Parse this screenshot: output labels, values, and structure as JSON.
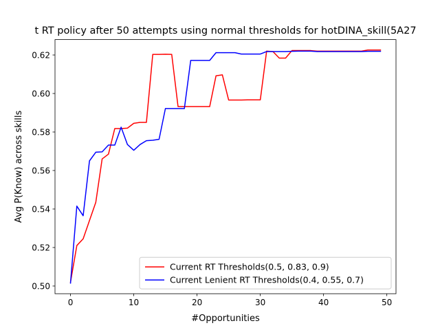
{
  "chart_data": {
    "type": "line",
    "title": "t RT policy after 50 attempts using normal thresholds for hotDINA_skill(5A27",
    "xlabel": "#Opportunities",
    "ylabel": "Avg P(Know) across skills",
    "xlim": [
      -2.45,
      51.45
    ],
    "ylim": [
      0.496,
      0.628
    ],
    "xticks": [
      0,
      10,
      20,
      30,
      40,
      50
    ],
    "yticks": [
      0.5,
      0.52,
      0.54,
      0.56,
      0.58,
      0.6,
      0.62
    ],
    "xtick_labels": [
      "0",
      "10",
      "20",
      "30",
      "40",
      "50"
    ],
    "ytick_labels": [
      "0.50",
      "0.52",
      "0.54",
      "0.56",
      "0.58",
      "0.60",
      "0.62"
    ],
    "grid": false,
    "legend_position": "lower right",
    "x": [
      0,
      1,
      2,
      3,
      4,
      5,
      6,
      7,
      8,
      9,
      10,
      11,
      12,
      13,
      14,
      15,
      16,
      17,
      18,
      19,
      20,
      21,
      22,
      23,
      24,
      25,
      26,
      27,
      28,
      29,
      30,
      31,
      32,
      33,
      34,
      35,
      36,
      37,
      38,
      39,
      40,
      41,
      42,
      43,
      44,
      45,
      46,
      47,
      48,
      49
    ],
    "series": [
      {
        "name": "Current RT Thresholds(0.5, 0.83, 0.9)",
        "color": "#ff0000",
        "values": [
          0.502,
          0.521,
          0.5245,
          0.534,
          0.5435,
          0.566,
          0.5685,
          0.5818,
          0.5818,
          0.582,
          0.5845,
          0.585,
          0.585,
          0.6203,
          0.6203,
          0.6204,
          0.6203,
          0.5932,
          0.5932,
          0.5932,
          0.5932,
          0.5932,
          0.5932,
          0.6092,
          0.6097,
          0.5966,
          0.5966,
          0.5966,
          0.5967,
          0.5967,
          0.5967,
          0.622,
          0.6218,
          0.6184,
          0.6184,
          0.6223,
          0.6223,
          0.6223,
          0.6223,
          0.622,
          0.622,
          0.622,
          0.622,
          0.622,
          0.622,
          0.622,
          0.622,
          0.6226,
          0.6226,
          0.6226
        ]
      },
      {
        "name": "Current Lenient RT Thresholds(0.4, 0.55, 0.7)",
        "color": "#0000ff",
        "values": [
          0.5015,
          0.5415,
          0.5365,
          0.565,
          0.5695,
          0.5697,
          0.5732,
          0.5732,
          0.5825,
          0.5735,
          0.5705,
          0.5735,
          0.5755,
          0.5757,
          0.5762,
          0.5922,
          0.5922,
          0.5922,
          0.5922,
          0.6172,
          0.6172,
          0.6172,
          0.6172,
          0.6212,
          0.6212,
          0.6212,
          0.6212,
          0.6205,
          0.6205,
          0.6205,
          0.6205,
          0.6218,
          0.6218,
          0.6218,
          0.6218,
          0.6219,
          0.622,
          0.622,
          0.622,
          0.6218,
          0.6218,
          0.6218,
          0.6218,
          0.6218,
          0.6218,
          0.6218,
          0.6218,
          0.6219,
          0.6219,
          0.6219
        ]
      }
    ]
  }
}
